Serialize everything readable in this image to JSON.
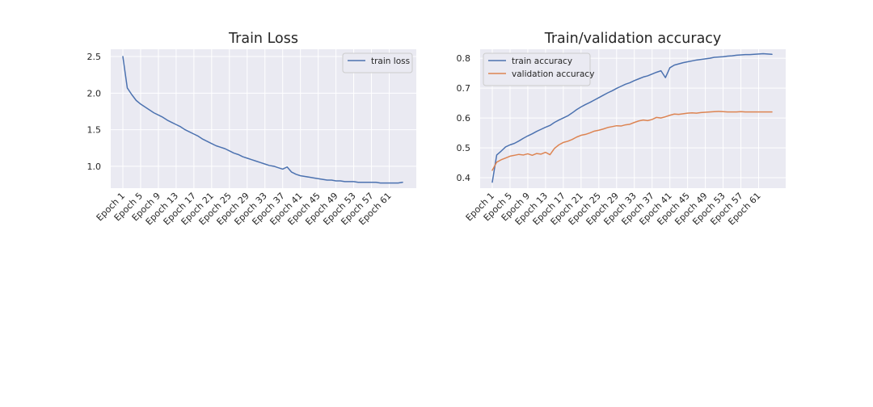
{
  "chart_data": [
    {
      "type": "line",
      "title": "Train Loss",
      "xlabel": "",
      "ylabel": "",
      "x": [
        "Epoch 1",
        "Epoch 2",
        "Epoch 3",
        "Epoch 4",
        "Epoch 5",
        "Epoch 6",
        "Epoch 7",
        "Epoch 8",
        "Epoch 9",
        "Epoch 10",
        "Epoch 11",
        "Epoch 12",
        "Epoch 13",
        "Epoch 14",
        "Epoch 15",
        "Epoch 16",
        "Epoch 17",
        "Epoch 18",
        "Epoch 19",
        "Epoch 20",
        "Epoch 21",
        "Epoch 22",
        "Epoch 23",
        "Epoch 24",
        "Epoch 25",
        "Epoch 26",
        "Epoch 27",
        "Epoch 28",
        "Epoch 29",
        "Epoch 30",
        "Epoch 31",
        "Epoch 32",
        "Epoch 33",
        "Epoch 34",
        "Epoch 35",
        "Epoch 36",
        "Epoch 37",
        "Epoch 38",
        "Epoch 39",
        "Epoch 40",
        "Epoch 41",
        "Epoch 42",
        "Epoch 43",
        "Epoch 44",
        "Epoch 45",
        "Epoch 46",
        "Epoch 47",
        "Epoch 48",
        "Epoch 49",
        "Epoch 50",
        "Epoch 51",
        "Epoch 52",
        "Epoch 53",
        "Epoch 54",
        "Epoch 55",
        "Epoch 56",
        "Epoch 57",
        "Epoch 58",
        "Epoch 59",
        "Epoch 60",
        "Epoch 61",
        "Epoch 62",
        "Epoch 63",
        "Epoch 64"
      ],
      "xticks": [
        "Epoch 1",
        "Epoch 5",
        "Epoch 9",
        "Epoch 13",
        "Epoch 17",
        "Epoch 21",
        "Epoch 25",
        "Epoch 29",
        "Epoch 33",
        "Epoch 37",
        "Epoch 41",
        "Epoch 45",
        "Epoch 49",
        "Epoch 53",
        "Epoch 57",
        "Epoch 61"
      ],
      "yticks": [
        1.0,
        1.5,
        2.0,
        2.5
      ],
      "ylim": [
        0.7,
        2.6
      ],
      "legend_position": "upper right",
      "grid": true,
      "series": [
        {
          "name": "train loss",
          "color": "#4c72b0",
          "values": [
            2.5,
            2.07,
            1.98,
            1.9,
            1.85,
            1.81,
            1.77,
            1.73,
            1.7,
            1.67,
            1.63,
            1.6,
            1.57,
            1.54,
            1.5,
            1.47,
            1.44,
            1.41,
            1.37,
            1.34,
            1.31,
            1.28,
            1.26,
            1.24,
            1.21,
            1.18,
            1.16,
            1.13,
            1.11,
            1.09,
            1.07,
            1.05,
            1.03,
            1.01,
            1.0,
            0.98,
            0.96,
            0.99,
            0.92,
            0.89,
            0.87,
            0.86,
            0.85,
            0.84,
            0.83,
            0.82,
            0.81,
            0.81,
            0.8,
            0.8,
            0.79,
            0.79,
            0.79,
            0.78,
            0.78,
            0.78,
            0.78,
            0.78,
            0.77,
            0.77,
            0.77,
            0.77,
            0.77,
            0.78
          ]
        }
      ]
    },
    {
      "type": "line",
      "title": "Train/validation accuracy",
      "xlabel": "",
      "ylabel": "",
      "x": [
        "Epoch 1",
        "Epoch 2",
        "Epoch 3",
        "Epoch 4",
        "Epoch 5",
        "Epoch 6",
        "Epoch 7",
        "Epoch 8",
        "Epoch 9",
        "Epoch 10",
        "Epoch 11",
        "Epoch 12",
        "Epoch 13",
        "Epoch 14",
        "Epoch 15",
        "Epoch 16",
        "Epoch 17",
        "Epoch 18",
        "Epoch 19",
        "Epoch 20",
        "Epoch 21",
        "Epoch 22",
        "Epoch 23",
        "Epoch 24",
        "Epoch 25",
        "Epoch 26",
        "Epoch 27",
        "Epoch 28",
        "Epoch 29",
        "Epoch 30",
        "Epoch 31",
        "Epoch 32",
        "Epoch 33",
        "Epoch 34",
        "Epoch 35",
        "Epoch 36",
        "Epoch 37",
        "Epoch 38",
        "Epoch 39",
        "Epoch 40",
        "Epoch 41",
        "Epoch 42",
        "Epoch 43",
        "Epoch 44",
        "Epoch 45",
        "Epoch 46",
        "Epoch 47",
        "Epoch 48",
        "Epoch 49",
        "Epoch 50",
        "Epoch 51",
        "Epoch 52",
        "Epoch 53",
        "Epoch 54",
        "Epoch 55",
        "Epoch 56",
        "Epoch 57",
        "Epoch 58",
        "Epoch 59",
        "Epoch 60",
        "Epoch 61",
        "Epoch 62",
        "Epoch 63",
        "Epoch 64"
      ],
      "xticks": [
        "Epoch 1",
        "Epoch 5",
        "Epoch 9",
        "Epoch 13",
        "Epoch 17",
        "Epoch 21",
        "Epoch 25",
        "Epoch 29",
        "Epoch 33",
        "Epoch 37",
        "Epoch 41",
        "Epoch 45",
        "Epoch 49",
        "Epoch 53",
        "Epoch 57",
        "Epoch 61"
      ],
      "yticks": [
        0.4,
        0.5,
        0.6,
        0.7,
        0.8
      ],
      "ylim": [
        0.365,
        0.83
      ],
      "legend_position": "upper left",
      "grid": true,
      "series": [
        {
          "name": "train accuracy",
          "color": "#4c72b0",
          "values": [
            0.385,
            0.476,
            0.489,
            0.503,
            0.51,
            0.515,
            0.523,
            0.532,
            0.54,
            0.547,
            0.555,
            0.562,
            0.569,
            0.575,
            0.585,
            0.593,
            0.6,
            0.607,
            0.617,
            0.628,
            0.637,
            0.645,
            0.652,
            0.66,
            0.668,
            0.676,
            0.684,
            0.691,
            0.699,
            0.706,
            0.713,
            0.718,
            0.725,
            0.731,
            0.737,
            0.741,
            0.747,
            0.753,
            0.758,
            0.735,
            0.768,
            0.777,
            0.781,
            0.785,
            0.788,
            0.791,
            0.794,
            0.796,
            0.798,
            0.8,
            0.803,
            0.804,
            0.805,
            0.807,
            0.808,
            0.81,
            0.811,
            0.812,
            0.812,
            0.813,
            0.814,
            0.815,
            0.814,
            0.813
          ]
        },
        {
          "name": "validation accuracy",
          "color": "#dd8452",
          "values": [
            0.425,
            0.452,
            0.46,
            0.466,
            0.472,
            0.475,
            0.478,
            0.476,
            0.48,
            0.475,
            0.481,
            0.479,
            0.485,
            0.477,
            0.498,
            0.51,
            0.518,
            0.522,
            0.528,
            0.536,
            0.542,
            0.545,
            0.55,
            0.556,
            0.559,
            0.563,
            0.568,
            0.571,
            0.574,
            0.573,
            0.577,
            0.579,
            0.585,
            0.59,
            0.593,
            0.591,
            0.595,
            0.602,
            0.6,
            0.604,
            0.609,
            0.613,
            0.612,
            0.614,
            0.616,
            0.617,
            0.616,
            0.618,
            0.619,
            0.62,
            0.621,
            0.622,
            0.621,
            0.62,
            0.62,
            0.62,
            0.621,
            0.62,
            0.62,
            0.62,
            0.62,
            0.62,
            0.62,
            0.62
          ]
        }
      ]
    }
  ]
}
